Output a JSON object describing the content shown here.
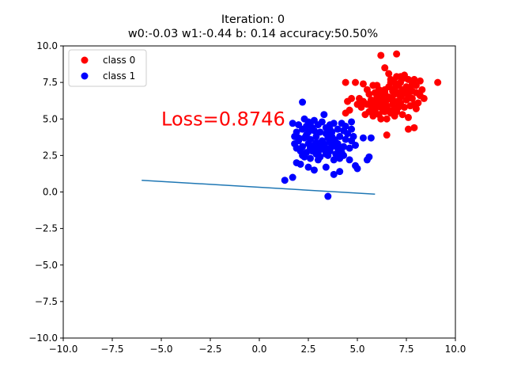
{
  "chart_data": {
    "type": "scatter",
    "title": "Iteration: 0",
    "subtitle": "w0:-0.03 w1:-0.44 b: 0.14 accuracy:50.50%",
    "xlabel": "",
    "ylabel": "",
    "xlim": [
      -10,
      10
    ],
    "ylim": [
      -10,
      10
    ],
    "grid": false,
    "xticks": [
      "−10.0",
      "−7.5",
      "−5.0",
      "−2.5",
      "0.0",
      "2.5",
      "5.0",
      "7.5",
      "10.0"
    ],
    "yticks": [
      "10.0",
      "7.5",
      "5.0",
      "2.5",
      "0.0",
      "−2.5",
      "−5.0",
      "−7.5",
      "−10.0"
    ],
    "legend": {
      "position": "upper left",
      "entries": [
        "class 0",
        "class 1"
      ]
    },
    "annotation": {
      "text": "Loss=0.8746",
      "x": -5.0,
      "y": 5.0,
      "color": "#ff0000"
    },
    "decision_line": {
      "x": [
        -6.0,
        5.9
      ],
      "y": [
        0.8,
        -0.15
      ],
      "color": "#1f77b4"
    },
    "series": [
      {
        "name": "class 0",
        "color": "#ff0000",
        "points": [
          [
            6.2,
            9.35
          ],
          [
            7.0,
            9.45
          ],
          [
            9.1,
            7.5
          ],
          [
            4.4,
            7.5
          ],
          [
            6.4,
            8.5
          ],
          [
            6.6,
            8.1
          ],
          [
            6.7,
            7.7
          ],
          [
            7.0,
            7.9
          ],
          [
            7.2,
            7.9
          ],
          [
            7.4,
            7.8
          ],
          [
            7.6,
            7.7
          ],
          [
            7.9,
            7.7
          ],
          [
            8.2,
            7.6
          ],
          [
            8.0,
            7.3
          ],
          [
            7.8,
            7.4
          ],
          [
            8.3,
            7.0
          ],
          [
            8.0,
            6.8
          ],
          [
            7.5,
            7.2
          ],
          [
            7.3,
            7.0
          ],
          [
            7.1,
            7.3
          ],
          [
            6.9,
            7.1
          ],
          [
            6.6,
            7.2
          ],
          [
            6.4,
            7.0
          ],
          [
            6.2,
            6.8
          ],
          [
            6.0,
            7.3
          ],
          [
            5.8,
            7.3
          ],
          [
            5.3,
            7.4
          ],
          [
            4.9,
            7.5
          ],
          [
            5.1,
            6.4
          ],
          [
            5.3,
            6.2
          ],
          [
            5.5,
            6.0
          ],
          [
            5.8,
            6.2
          ],
          [
            6.0,
            6.5
          ],
          [
            6.3,
            6.4
          ],
          [
            6.6,
            6.5
          ],
          [
            6.9,
            6.7
          ],
          [
            7.2,
            6.5
          ],
          [
            7.5,
            6.3
          ],
          [
            7.8,
            6.4
          ],
          [
            8.4,
            6.4
          ],
          [
            8.1,
            6.1
          ],
          [
            7.7,
            5.9
          ],
          [
            7.4,
            5.8
          ],
          [
            7.1,
            5.8
          ],
          [
            6.8,
            6.0
          ],
          [
            6.5,
            5.9
          ],
          [
            6.2,
            5.8
          ],
          [
            5.9,
            5.6
          ],
          [
            5.6,
            5.5
          ],
          [
            5.4,
            5.3
          ],
          [
            5.8,
            5.2
          ],
          [
            6.1,
            5.3
          ],
          [
            6.4,
            5.5
          ],
          [
            6.7,
            5.4
          ],
          [
            7.0,
            5.5
          ],
          [
            7.3,
            5.3
          ],
          [
            7.6,
            5.1
          ],
          [
            6.9,
            5.2
          ],
          [
            6.5,
            5.0
          ],
          [
            6.2,
            5.0
          ],
          [
            4.6,
            5.6
          ],
          [
            4.4,
            5.4
          ],
          [
            4.7,
            6.4
          ],
          [
            4.5,
            6.2
          ],
          [
            6.5,
            3.9
          ],
          [
            7.6,
            4.3
          ],
          [
            7.9,
            4.4
          ],
          [
            5.6,
            6.7
          ],
          [
            6.8,
            6.3
          ],
          [
            7.5,
            6.9
          ],
          [
            8.0,
            5.7
          ],
          [
            5.7,
            5.9
          ],
          [
            6.3,
            6.1
          ],
          [
            7.2,
            6.1
          ],
          [
            5.2,
            5.8
          ],
          [
            6.9,
            5.7
          ],
          [
            7.8,
            6.9
          ],
          [
            6.1,
            7.0
          ],
          [
            7.4,
            8.0
          ],
          [
            6.7,
            7.5
          ],
          [
            5.9,
            6.8
          ],
          [
            7.0,
            6.2
          ],
          [
            6.4,
            6.8
          ],
          [
            5.5,
            7.0
          ],
          [
            7.7,
            7.1
          ],
          [
            6.0,
            5.9
          ],
          [
            6.6,
            5.6
          ],
          [
            7.3,
            6.7
          ],
          [
            5.0,
            6.0
          ],
          [
            8.2,
            6.6
          ],
          [
            6.8,
            6.9
          ],
          [
            7.1,
            6.8
          ],
          [
            6.3,
            5.6
          ],
          [
            7.9,
            6.0
          ],
          [
            5.7,
            6.3
          ],
          [
            6.9,
            7.5
          ],
          [
            7.6,
            6.6
          ],
          [
            6.5,
            6.3
          ],
          [
            7.2,
            7.5
          ],
          [
            6.1,
            6.2
          ]
        ]
      },
      {
        "name": "class 1",
        "color": "#0000ff",
        "points": [
          [
            2.2,
            6.15
          ],
          [
            1.7,
            4.7
          ],
          [
            2.0,
            4.6
          ],
          [
            2.4,
            4.5
          ],
          [
            2.6,
            4.7
          ],
          [
            2.8,
            4.9
          ],
          [
            3.3,
            5.3
          ],
          [
            3.0,
            4.6
          ],
          [
            3.4,
            4.4
          ],
          [
            3.6,
            4.6
          ],
          [
            3.8,
            4.7
          ],
          [
            4.2,
            4.7
          ],
          [
            4.7,
            4.8
          ],
          [
            4.7,
            4.3
          ],
          [
            4.3,
            4.2
          ],
          [
            4.0,
            4.3
          ],
          [
            3.7,
            4.1
          ],
          [
            3.4,
            4.0
          ],
          [
            3.1,
            4.1
          ],
          [
            2.8,
            4.2
          ],
          [
            2.5,
            4.1
          ],
          [
            2.2,
            4.3
          ],
          [
            1.9,
            4.1
          ],
          [
            1.8,
            3.8
          ],
          [
            2.0,
            3.5
          ],
          [
            2.3,
            3.7
          ],
          [
            2.6,
            3.6
          ],
          [
            2.9,
            3.4
          ],
          [
            3.2,
            3.5
          ],
          [
            3.5,
            3.7
          ],
          [
            3.8,
            3.6
          ],
          [
            4.1,
            3.8
          ],
          [
            4.4,
            3.6
          ],
          [
            4.7,
            3.5
          ],
          [
            5.3,
            3.7
          ],
          [
            5.7,
            3.7
          ],
          [
            4.9,
            3.2
          ],
          [
            4.6,
            3.0
          ],
          [
            4.3,
            3.1
          ],
          [
            4.0,
            3.0
          ],
          [
            3.7,
            3.1
          ],
          [
            3.4,
            3.0
          ],
          [
            3.1,
            3.1
          ],
          [
            2.8,
            3.2
          ],
          [
            2.5,
            3.3
          ],
          [
            2.2,
            3.1
          ],
          [
            1.9,
            3.0
          ],
          [
            1.8,
            3.3
          ],
          [
            2.1,
            2.8
          ],
          [
            2.4,
            2.7
          ],
          [
            2.7,
            2.8
          ],
          [
            3.0,
            2.7
          ],
          [
            3.3,
            2.9
          ],
          [
            3.6,
            2.8
          ],
          [
            3.9,
            2.6
          ],
          [
            4.2,
            2.7
          ],
          [
            2.3,
            2.4
          ],
          [
            2.6,
            2.3
          ],
          [
            3.0,
            2.2
          ],
          [
            3.5,
            2.5
          ],
          [
            3.8,
            2.2
          ],
          [
            4.1,
            2.3
          ],
          [
            4.6,
            2.2
          ],
          [
            5.5,
            2.2
          ],
          [
            5.6,
            2.4
          ],
          [
            1.9,
            2.0
          ],
          [
            2.1,
            1.9
          ],
          [
            2.5,
            1.7
          ],
          [
            2.8,
            1.5
          ],
          [
            3.4,
            1.7
          ],
          [
            4.1,
            1.4
          ],
          [
            5.0,
            1.6
          ],
          [
            4.9,
            1.8
          ],
          [
            3.8,
            1.2
          ],
          [
            1.7,
            1.0
          ],
          [
            1.3,
            0.8
          ],
          [
            3.5,
            -0.3
          ],
          [
            2.9,
            3.8
          ],
          [
            3.3,
            3.3
          ],
          [
            2.4,
            3.9
          ],
          [
            3.9,
            3.4
          ],
          [
            2.7,
            4.4
          ],
          [
            4.5,
            4.0
          ],
          [
            3.6,
            3.4
          ],
          [
            2.0,
            3.7
          ],
          [
            3.2,
            4.8
          ],
          [
            4.4,
            4.5
          ],
          [
            2.3,
            5.0
          ],
          [
            2.6,
            3.0
          ],
          [
            3.1,
            2.4
          ],
          [
            4.3,
            2.5
          ],
          [
            2.9,
            2.6
          ],
          [
            3.7,
            3.8
          ],
          [
            3.0,
            3.0
          ],
          [
            2.2,
            2.5
          ],
          [
            4.0,
            3.3
          ],
          [
            3.4,
            2.6
          ],
          [
            2.5,
            4.8
          ],
          [
            4.8,
            3.8
          ],
          [
            3.6,
            4.3
          ]
        ]
      }
    ]
  }
}
